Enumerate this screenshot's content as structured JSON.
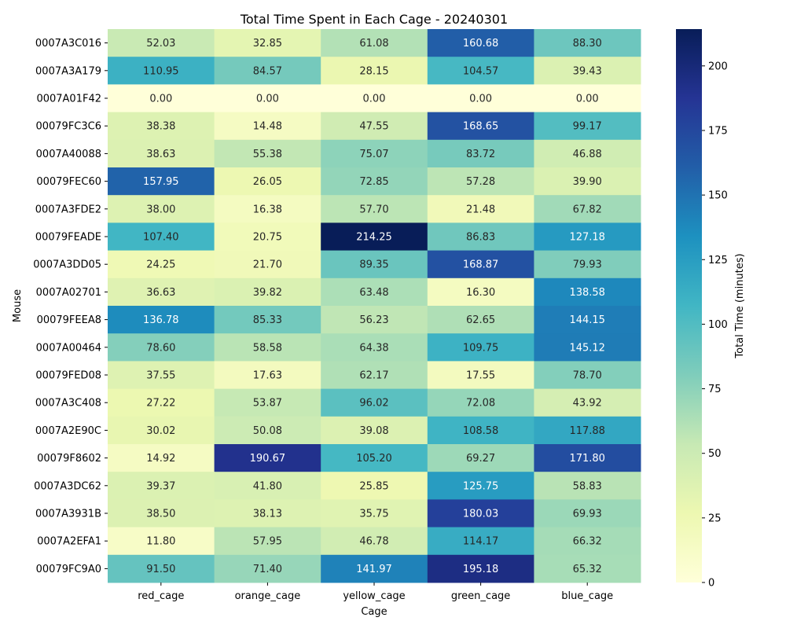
{
  "chart_data": {
    "type": "heatmap",
    "title": "Total Time Spent in Each Cage - 20240301",
    "xlabel": "Cage",
    "ylabel": "Mouse",
    "colorbar_label": "Total Time (minutes)",
    "colormap": "YlGnBu",
    "value_range": [
      0,
      214.25
    ],
    "colorbar_ticks": [
      0,
      25,
      50,
      75,
      100,
      125,
      150,
      175,
      200
    ],
    "columns": [
      "red_cage",
      "orange_cage",
      "yellow_cage",
      "green_cage",
      "blue_cage"
    ],
    "rows": [
      "0007A3C016",
      "0007A3A179",
      "0007A01F42",
      "00079FC3C6",
      "0007A40088",
      "00079FEC60",
      "0007A3FDE2",
      "00079FEADE",
      "0007A3DD05",
      "0007A02701",
      "00079FEEA8",
      "0007A00464",
      "00079FED08",
      "0007A3C408",
      "0007A2E90C",
      "00079F8602",
      "0007A3DC62",
      "0007A3931B",
      "0007A2EFA1",
      "00079FC9A0"
    ],
    "values": [
      [
        52.03,
        32.85,
        61.08,
        160.68,
        88.3
      ],
      [
        110.95,
        84.57,
        28.15,
        104.57,
        39.43
      ],
      [
        0.0,
        0.0,
        0.0,
        0.0,
        0.0
      ],
      [
        38.38,
        14.48,
        47.55,
        168.65,
        99.17
      ],
      [
        38.63,
        55.38,
        75.07,
        83.72,
        46.88
      ],
      [
        157.95,
        26.05,
        72.85,
        57.28,
        39.9
      ],
      [
        38.0,
        16.38,
        57.7,
        21.48,
        67.82
      ],
      [
        107.4,
        20.75,
        214.25,
        86.83,
        127.18
      ],
      [
        24.25,
        21.7,
        89.35,
        168.87,
        79.93
      ],
      [
        36.63,
        39.82,
        63.48,
        16.3,
        138.58
      ],
      [
        136.78,
        85.33,
        56.23,
        62.65,
        144.15
      ],
      [
        78.6,
        58.58,
        64.38,
        109.75,
        145.12
      ],
      [
        37.55,
        17.63,
        62.17,
        17.55,
        78.7
      ],
      [
        27.22,
        53.87,
        96.02,
        72.08,
        43.92
      ],
      [
        30.02,
        50.08,
        39.08,
        108.58,
        117.88
      ],
      [
        14.92,
        190.67,
        105.2,
        69.27,
        171.8
      ],
      [
        39.37,
        41.8,
        25.85,
        125.75,
        58.83
      ],
      [
        38.5,
        38.13,
        35.75,
        180.03,
        69.93
      ],
      [
        11.8,
        57.95,
        46.78,
        114.17,
        66.32
      ],
      [
        91.5,
        71.4,
        141.97,
        195.18,
        65.32
      ]
    ]
  }
}
